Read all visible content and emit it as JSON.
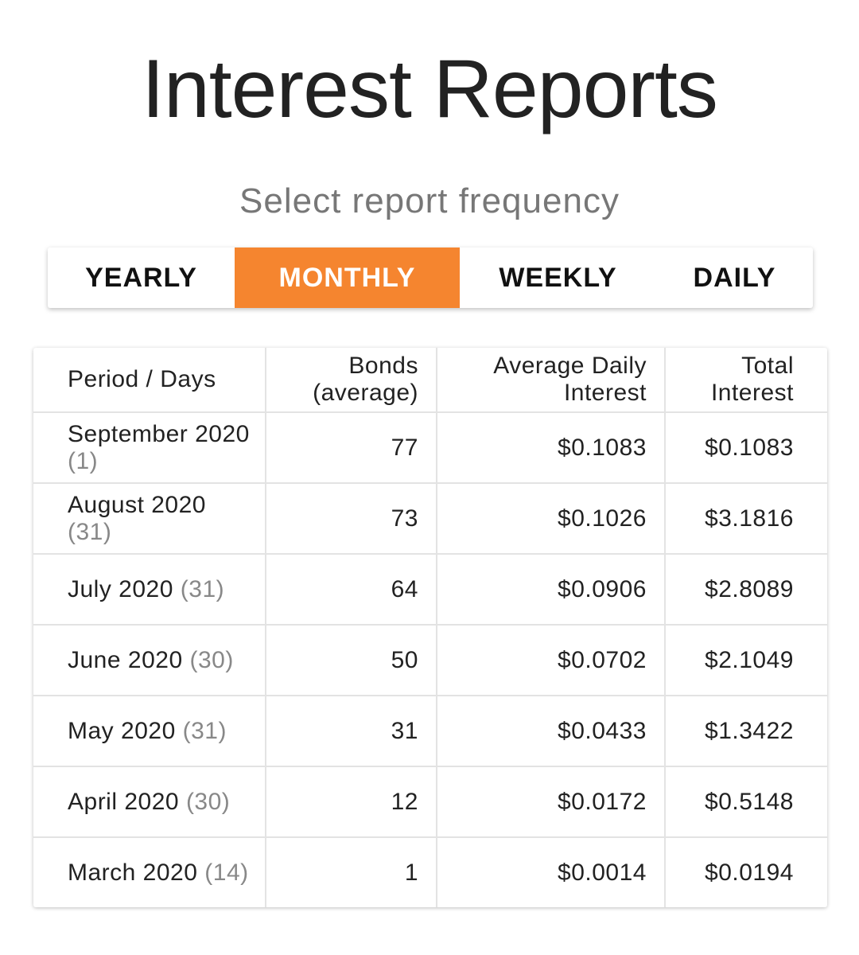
{
  "header": {
    "title": "Interest Reports",
    "subtitle": "Select report frequency"
  },
  "tabs": [
    {
      "label": "YEARLY",
      "selected": false
    },
    {
      "label": "MONTHLY",
      "selected": true
    },
    {
      "label": "WEEKLY",
      "selected": false
    },
    {
      "label": "DAILY",
      "selected": false
    }
  ],
  "table": {
    "columns": [
      "Period / Days",
      "Bonds (average)",
      "Average Daily Interest",
      "Total Interest"
    ],
    "rows": [
      {
        "period": "September 2020",
        "days": "(1)",
        "bonds": 77,
        "average_daily_interest": "$0.1083",
        "total_interest": "$0.1083"
      },
      {
        "period": "August 2020",
        "days": "(31)",
        "bonds": 73,
        "average_daily_interest": "$0.1026",
        "total_interest": "$3.1816"
      },
      {
        "period": "July 2020",
        "days": "(31)",
        "bonds": 64,
        "average_daily_interest": "$0.0906",
        "total_interest": "$2.8089"
      },
      {
        "period": "June 2020",
        "days": "(30)",
        "bonds": 50,
        "average_daily_interest": "$0.0702",
        "total_interest": "$2.1049"
      },
      {
        "period": "May 2020",
        "days": "(31)",
        "bonds": 31,
        "average_daily_interest": "$0.0433",
        "total_interest": "$1.3422"
      },
      {
        "period": "April 2020",
        "days": "(30)",
        "bonds": 12,
        "average_daily_interest": "$0.0172",
        "total_interest": "$0.5148"
      },
      {
        "period": "March 2020",
        "days": "(14)",
        "bonds": 1,
        "average_daily_interest": "$0.0014",
        "total_interest": "$0.0194"
      }
    ]
  }
}
